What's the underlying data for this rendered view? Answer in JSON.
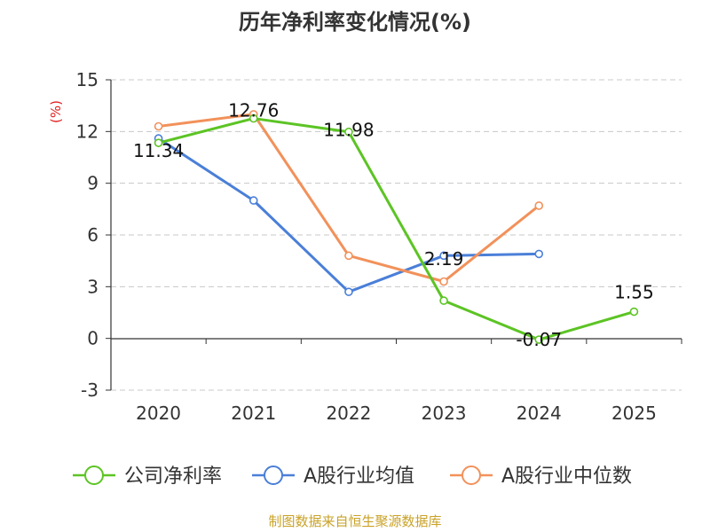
{
  "chart_data": {
    "type": "line",
    "title": "历年净利率变化情况(%)",
    "ylabel": "(%)",
    "xlabel": "",
    "categories": [
      "2020",
      "2021",
      "2022",
      "2023",
      "2024",
      "2025"
    ],
    "ylim": [
      -3,
      15
    ],
    "yticks": [
      -3,
      0,
      3,
      6,
      9,
      12,
      15
    ],
    "grid": true,
    "legend_position": "bottom",
    "series": [
      {
        "name": "公司净利率",
        "color": "#5cc424",
        "values": [
          11.34,
          12.76,
          11.98,
          2.19,
          -0.07,
          1.55
        ],
        "labels": [
          "11.34",
          "12.76",
          "11.98",
          "2.19",
          "-0.07",
          "1.55"
        ]
      },
      {
        "name": "A股行业均值",
        "color": "#4a7fd8",
        "values": [
          11.6,
          8.0,
          2.7,
          4.8,
          4.9,
          null
        ]
      },
      {
        "name": "A股行业中位数",
        "color": "#f2915a",
        "values": [
          12.3,
          13.0,
          4.8,
          3.3,
          7.7,
          null
        ]
      }
    ]
  },
  "source_text": "制图数据来自恒生聚源数据库"
}
